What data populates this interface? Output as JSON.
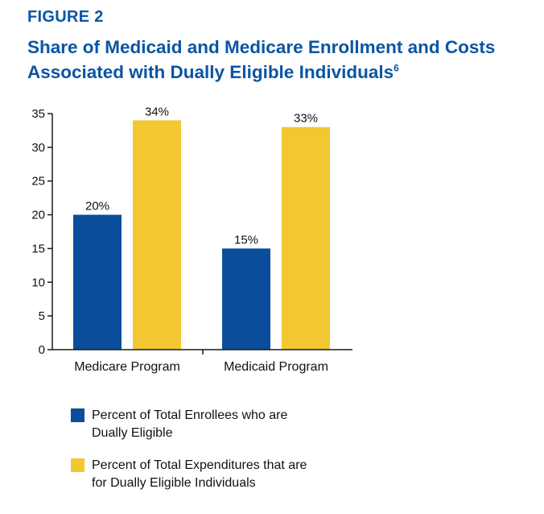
{
  "figure": {
    "label": "FIGURE 2",
    "title": "Share of Medicaid and Medicare Enrollment and Costs Associated with Dually Eligible Individuals",
    "title_superscript": "6"
  },
  "colors": {
    "title": "#0a55a3",
    "enrollees": "#0a4e9b",
    "expenditures": "#f1c832",
    "axis": "#1a1a1a"
  },
  "chart_data": {
    "type": "bar",
    "categories": [
      "Medicare Program",
      "Medicaid Program"
    ],
    "series": [
      {
        "name": "Percent of Total Enrollees who are Dually Eligible",
        "values": [
          20,
          15
        ],
        "labels": [
          "20%",
          "15%"
        ]
      },
      {
        "name": "Percent of Total Expenditures that are for Dually Eligible Individuals",
        "values": [
          34,
          33
        ],
        "labels": [
          "34%",
          "33%"
        ]
      }
    ],
    "ylim": [
      0,
      35
    ],
    "yticks": [
      0,
      5,
      10,
      15,
      20,
      25,
      30,
      35
    ],
    "grid": false,
    "legend_position": "bottom"
  },
  "legend": {
    "items": [
      {
        "line1": "Percent of Total Enrollees who are",
        "line2": "Dually Eligible"
      },
      {
        "line1": "Percent of Total Expenditures that are",
        "line2": "for Dually Eligible Individuals"
      }
    ]
  }
}
